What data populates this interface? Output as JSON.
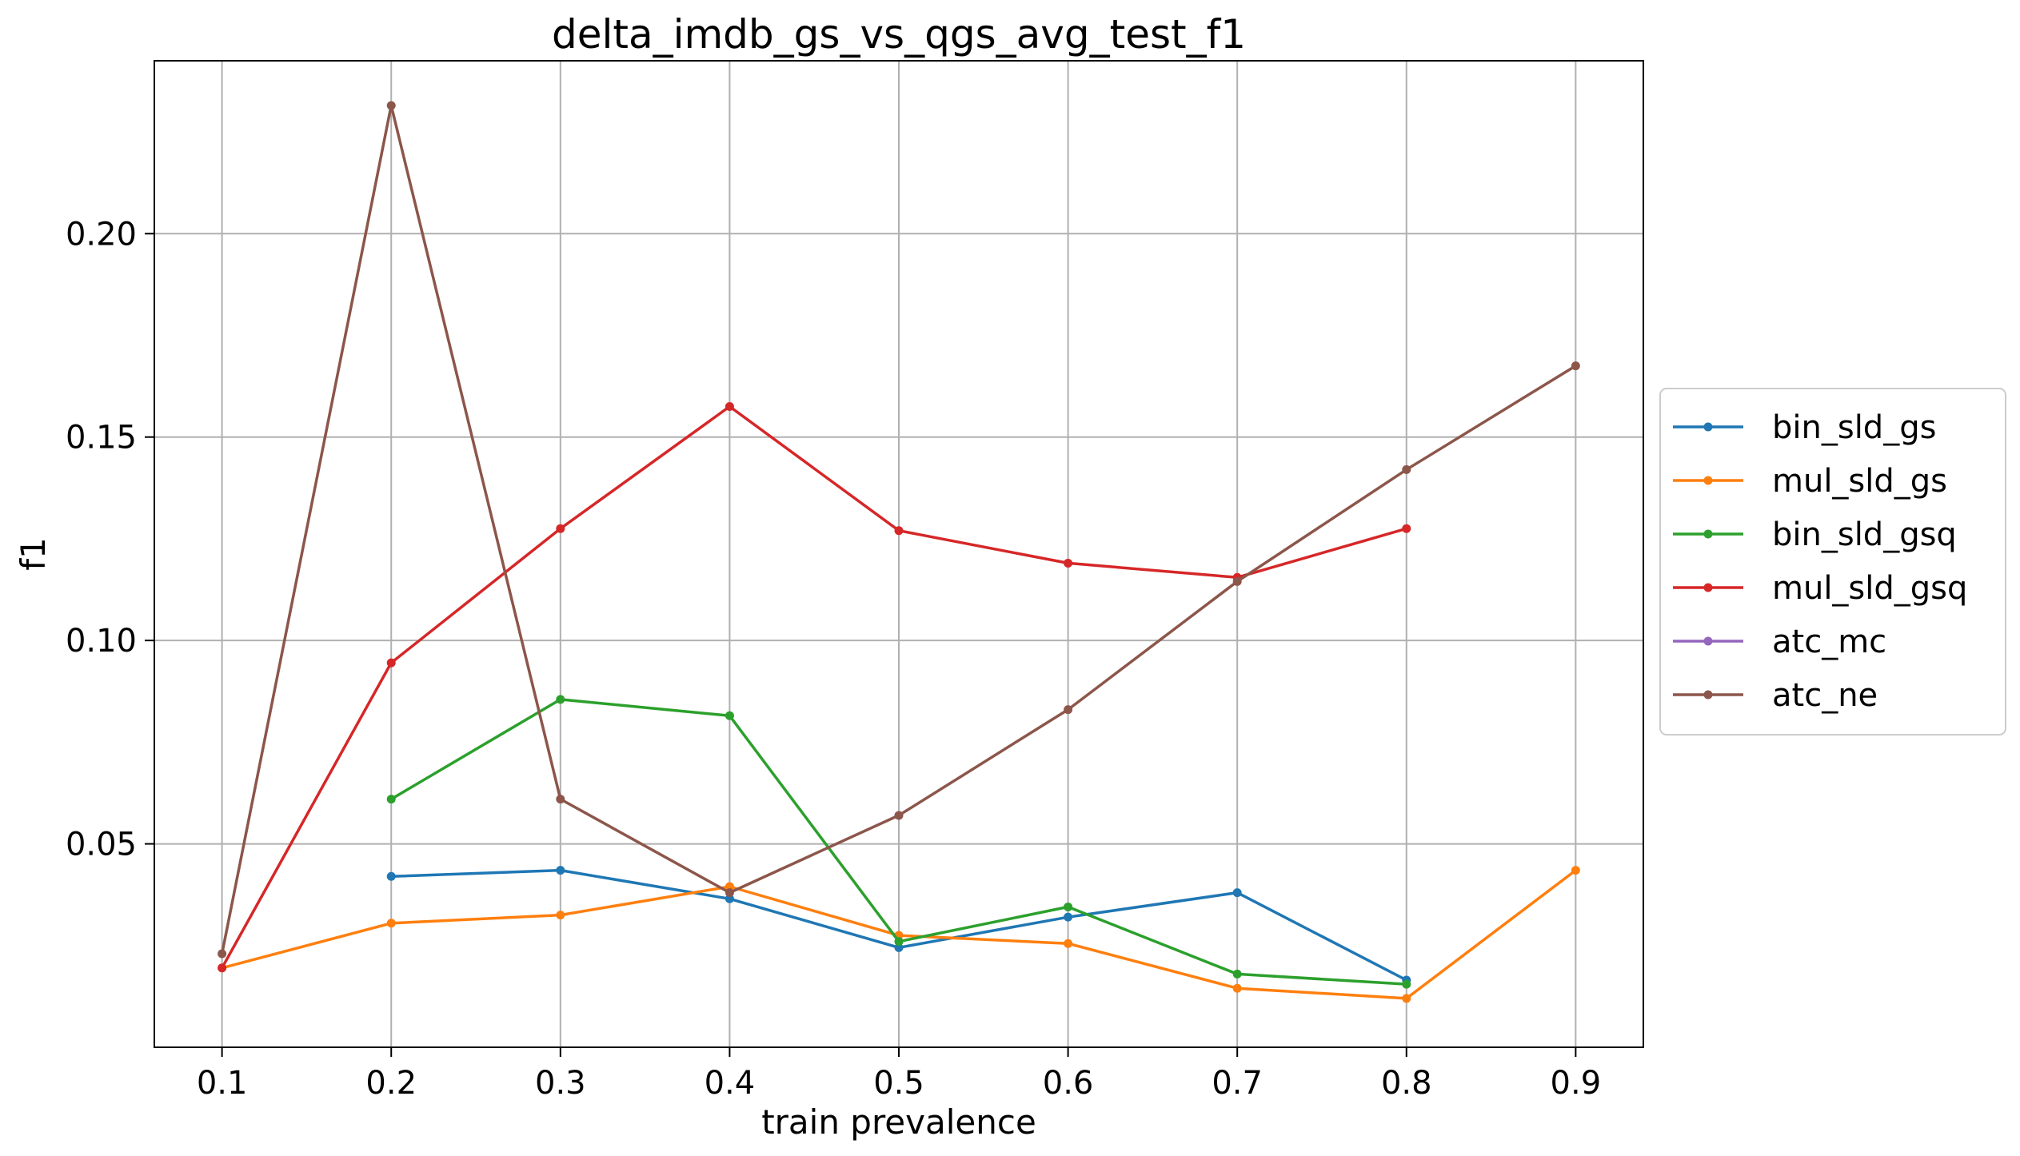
{
  "chart_data": {
    "type": "line",
    "title": "delta_imdb_gs_vs_qgs_avg_test_f1",
    "xlabel": "train prevalence",
    "ylabel": "f1",
    "x": [
      0.1,
      0.2,
      0.3,
      0.4,
      0.5,
      0.6,
      0.7,
      0.8,
      0.9
    ],
    "xlim": [
      0.06,
      0.94
    ],
    "ylim": [
      0.0,
      0.2425
    ],
    "xticks": [
      0.1,
      0.2,
      0.3,
      0.4,
      0.5,
      0.6,
      0.7,
      0.8,
      0.9
    ],
    "xtick_labels": [
      "0.1",
      "0.2",
      "0.3",
      "0.4",
      "0.5",
      "0.6",
      "0.7",
      "0.8",
      "0.9"
    ],
    "yticks": [
      0.05,
      0.1,
      0.15,
      0.2
    ],
    "ytick_labels": [
      "0.05",
      "0.10",
      "0.15",
      "0.20"
    ],
    "grid": true,
    "legend_position": "right, outside plot",
    "series": [
      {
        "name": "bin_sld_gs",
        "color": "#1f77b4",
        "values": [
          null,
          0.042,
          0.0435,
          0.0365,
          0.0245,
          0.032,
          0.038,
          0.0165,
          null
        ]
      },
      {
        "name": "mul_sld_gs",
        "color": "#ff7f0e",
        "values": [
          0.0195,
          0.0305,
          0.0325,
          0.0395,
          0.0275,
          0.0255,
          0.0145,
          0.012,
          0.0435
        ]
      },
      {
        "name": "bin_sld_gsq",
        "color": "#2ca02c",
        "values": [
          null,
          0.061,
          0.0855,
          0.0815,
          0.026,
          0.0345,
          0.018,
          0.0155,
          null
        ]
      },
      {
        "name": "mul_sld_gsq",
        "color": "#d62728",
        "values": [
          0.0195,
          0.0945,
          0.1275,
          0.1575,
          0.127,
          0.119,
          0.1155,
          0.1275,
          null
        ]
      },
      {
        "name": "atc_mc",
        "color": "#9467bd",
        "values": [
          null,
          null,
          null,
          null,
          null,
          null,
          null,
          null,
          null
        ]
      },
      {
        "name": "atc_ne",
        "color": "#8c564b",
        "values": [
          0.023,
          0.2315,
          0.061,
          0.038,
          0.057,
          0.083,
          0.1145,
          0.142,
          0.1675
        ]
      }
    ]
  }
}
